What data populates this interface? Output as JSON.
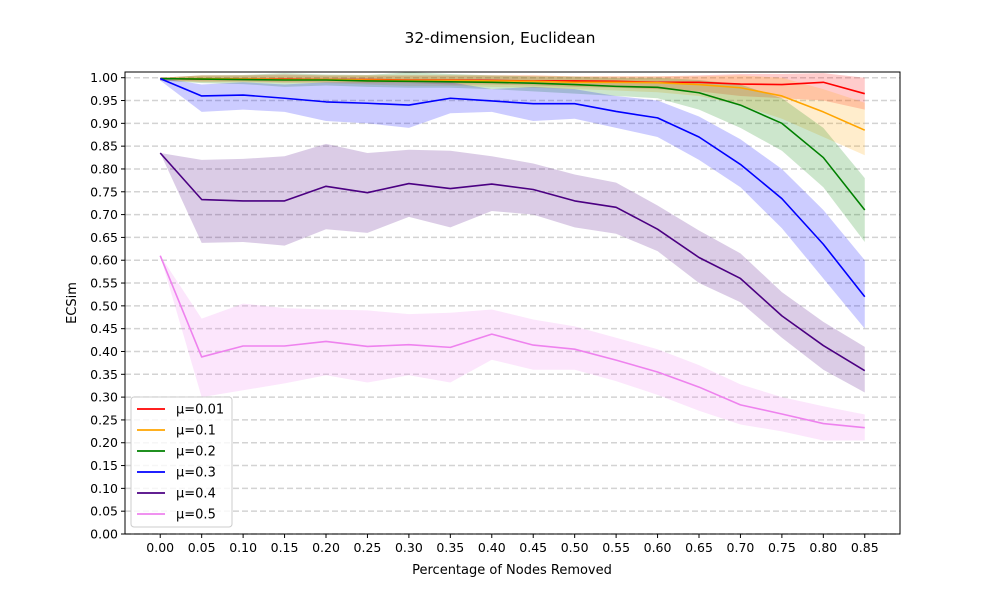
{
  "chart_data": {
    "type": "line",
    "title": "32-dimension, Euclidean",
    "xlabel": "Percentage of Nodes Removed",
    "ylabel": "ECSim",
    "x": [
      0.0,
      0.05,
      0.1,
      0.15,
      0.2,
      0.25,
      0.3,
      0.35,
      0.4,
      0.45,
      0.5,
      0.55,
      0.6,
      0.65,
      0.7,
      0.75,
      0.8,
      0.85
    ],
    "x_tick_labels": [
      "0.00",
      "0.05",
      "0.10",
      "0.15",
      "0.20",
      "0.25",
      "0.30",
      "0.35",
      "0.40",
      "0.45",
      "0.50",
      "0.55",
      "0.60",
      "0.65",
      "0.70",
      "0.75",
      "0.80",
      "0.85"
    ],
    "xlim": [
      -0.0425,
      0.8925
    ],
    "ylim": [
      0.0,
      1.0125
    ],
    "y_ticks": [
      0.0,
      0.05,
      0.1,
      0.15,
      0.2,
      0.25,
      0.3,
      0.35,
      0.4,
      0.45,
      0.5,
      0.55,
      0.6,
      0.65,
      0.7,
      0.75,
      0.8,
      0.85,
      0.9,
      0.95,
      1.0
    ],
    "y_tick_labels": [
      "0.00",
      "0.05",
      "0.10",
      "0.15",
      "0.20",
      "0.25",
      "0.30",
      "0.35",
      "0.40",
      "0.45",
      "0.50",
      "0.55",
      "0.60",
      "0.65",
      "0.70",
      "0.75",
      "0.80",
      "0.85",
      "0.90",
      "0.95",
      "1.00"
    ],
    "grid": "horizontal-dashed",
    "legend_position": "lower-left",
    "series": [
      {
        "name": "μ=0.01",
        "color": "#ff0000",
        "values": [
          0.998,
          0.997,
          0.997,
          0.997,
          0.996,
          0.996,
          0.995,
          0.995,
          0.994,
          0.993,
          0.993,
          0.992,
          0.99,
          0.99,
          0.986,
          0.985,
          0.99,
          0.965
        ],
        "lower": [
          0.994,
          0.992,
          0.992,
          0.99,
          0.99,
          0.988,
          0.988,
          0.985,
          0.985,
          0.983,
          0.98,
          0.978,
          0.975,
          0.97,
          0.96,
          0.955,
          0.95,
          0.93
        ],
        "upper": [
          1.0,
          1.005,
          1.005,
          1.007,
          1.005,
          1.005,
          1.005,
          1.005,
          1.005,
          1.005,
          1.003,
          1.003,
          1.003,
          1.005,
          1.008,
          1.008,
          1.01,
          1.0
        ]
      },
      {
        "name": "μ=0.1",
        "color": "#ffa500",
        "values": [
          0.998,
          0.998,
          0.997,
          0.996,
          0.996,
          0.995,
          0.994,
          0.994,
          0.993,
          0.992,
          0.99,
          0.99,
          0.989,
          0.985,
          0.978,
          0.96,
          0.925,
          0.885
        ],
        "lower": [
          0.994,
          0.99,
          0.99,
          0.988,
          0.988,
          0.985,
          0.982,
          0.982,
          0.98,
          0.978,
          0.975,
          0.972,
          0.968,
          0.96,
          0.94,
          0.91,
          0.87,
          0.83
        ],
        "upper": [
          1.0,
          1.005,
          1.005,
          1.005,
          1.005,
          1.005,
          1.005,
          1.005,
          1.005,
          1.005,
          1.003,
          1.003,
          1.003,
          1.003,
          1.005,
          1.0,
          0.975,
          0.945
        ]
      },
      {
        "name": "μ=0.2",
        "color": "#008000",
        "values": [
          0.998,
          0.997,
          0.996,
          0.995,
          0.995,
          0.993,
          0.992,
          0.991,
          0.99,
          0.988,
          0.985,
          0.981,
          0.979,
          0.967,
          0.94,
          0.9,
          0.825,
          0.71
        ],
        "lower": [
          0.994,
          0.988,
          0.986,
          0.98,
          0.983,
          0.98,
          0.978,
          0.978,
          0.975,
          0.97,
          0.965,
          0.96,
          0.955,
          0.93,
          0.89,
          0.84,
          0.76,
          0.64
        ],
        "upper": [
          1.0,
          1.005,
          1.006,
          1.01,
          1.007,
          1.006,
          1.012,
          1.008,
          1.005,
          1.003,
          1.002,
          1.0,
          1.0,
          0.995,
          0.985,
          0.955,
          0.89,
          0.78
        ]
      },
      {
        "name": "μ=0.3",
        "color": "#0000ff",
        "values": [
          0.998,
          0.96,
          0.962,
          0.955,
          0.947,
          0.944,
          0.94,
          0.955,
          0.949,
          0.943,
          0.943,
          0.926,
          0.912,
          0.87,
          0.81,
          0.735,
          0.635,
          0.52
        ],
        "lower": [
          0.994,
          0.925,
          0.93,
          0.925,
          0.905,
          0.9,
          0.89,
          0.922,
          0.925,
          0.905,
          0.91,
          0.89,
          0.87,
          0.82,
          0.76,
          0.67,
          0.56,
          0.45
        ],
        "upper": [
          1.0,
          0.985,
          0.99,
          0.985,
          0.99,
          0.99,
          0.99,
          0.99,
          0.975,
          0.98,
          0.975,
          0.96,
          0.95,
          0.915,
          0.865,
          0.8,
          0.71,
          0.6
        ]
      },
      {
        "name": "μ=0.4",
        "color": "#4b0082",
        "values": [
          0.835,
          0.733,
          0.73,
          0.73,
          0.762,
          0.748,
          0.768,
          0.757,
          0.767,
          0.755,
          0.73,
          0.716,
          0.668,
          0.606,
          0.56,
          0.478,
          0.413,
          0.358
        ],
        "lower": [
          0.835,
          0.638,
          0.64,
          0.632,
          0.668,
          0.66,
          0.695,
          0.672,
          0.708,
          0.7,
          0.672,
          0.658,
          0.62,
          0.55,
          0.508,
          0.43,
          0.36,
          0.31
        ],
        "upper": [
          0.835,
          0.82,
          0.822,
          0.828,
          0.855,
          0.835,
          0.842,
          0.84,
          0.828,
          0.812,
          0.788,
          0.77,
          0.72,
          0.665,
          0.615,
          0.53,
          0.465,
          0.41
        ]
      },
      {
        "name": "μ=0.5",
        "color": "#ee82ee",
        "values": [
          0.61,
          0.388,
          0.412,
          0.412,
          0.422,
          0.411,
          0.415,
          0.409,
          0.438,
          0.414,
          0.405,
          0.381,
          0.355,
          0.322,
          0.283,
          0.263,
          0.242,
          0.233
        ],
        "lower": [
          0.61,
          0.3,
          0.315,
          0.33,
          0.348,
          0.332,
          0.348,
          0.332,
          0.382,
          0.36,
          0.36,
          0.335,
          0.305,
          0.27,
          0.24,
          0.225,
          0.205,
          0.205
        ],
        "upper": [
          0.61,
          0.472,
          0.505,
          0.495,
          0.492,
          0.49,
          0.482,
          0.485,
          0.492,
          0.47,
          0.455,
          0.43,
          0.405,
          0.37,
          0.328,
          0.3,
          0.28,
          0.262
        ]
      }
    ]
  }
}
